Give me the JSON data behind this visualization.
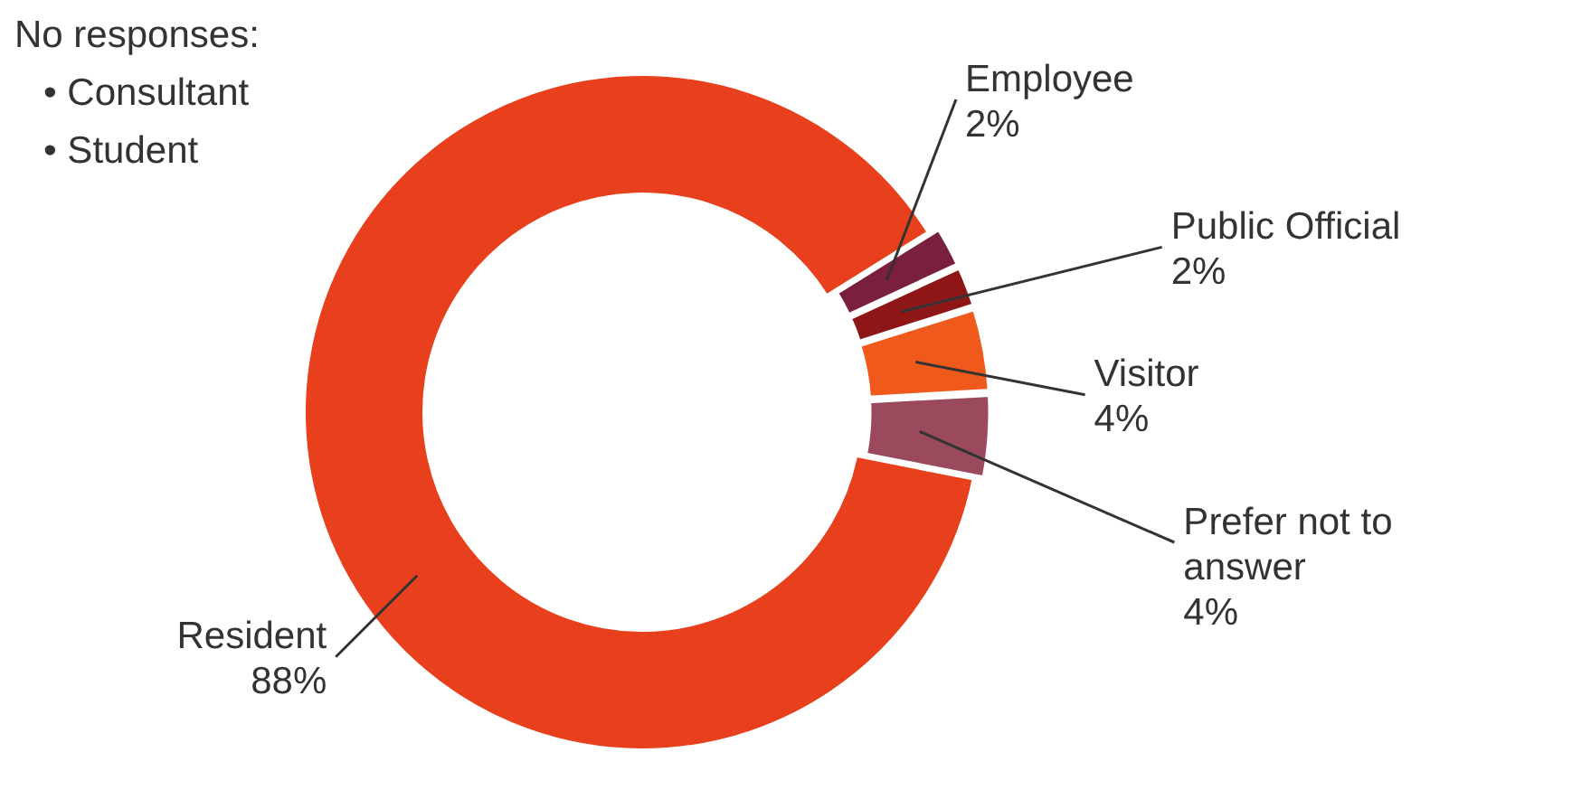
{
  "chart_data": {
    "type": "donut",
    "categories": [
      "Employee",
      "Public Official",
      "Visitor",
      "Prefer not to answer",
      "Resident"
    ],
    "values": [
      2,
      2,
      4,
      4,
      88
    ],
    "value_labels": [
      "2%",
      "2%",
      "4%",
      "4%",
      "88%"
    ],
    "colors": [
      "#7b1f3f",
      "#8e1616",
      "#ef5a1c",
      "#9a4a5c",
      "#e8401c"
    ],
    "annotations": [
      "No responses:",
      "•  Consultant",
      "•  Student"
    ],
    "legend": false
  }
}
